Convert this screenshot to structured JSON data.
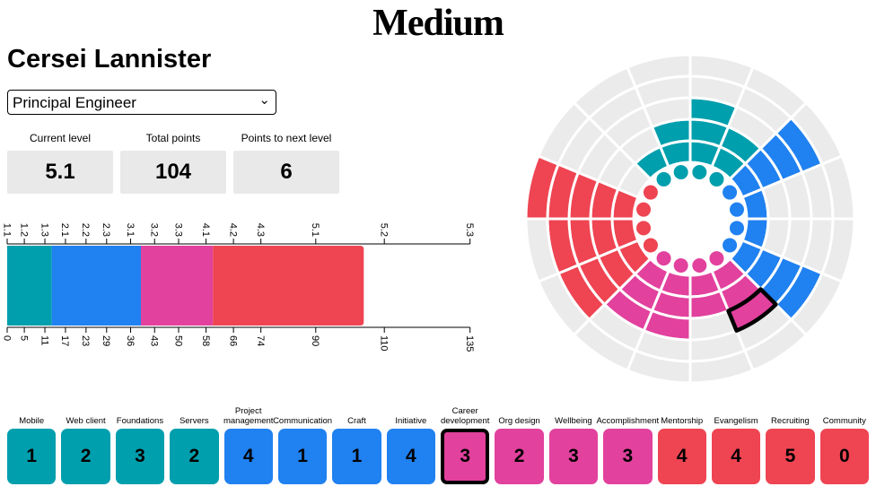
{
  "header": {
    "logo": "Medium"
  },
  "profile": {
    "name": "Cersei Lannister",
    "role_selector_value": "Principal Engineer"
  },
  "stats": {
    "items": [
      {
        "label": "Current level",
        "value": "5.1"
      },
      {
        "label": "Total points",
        "value": "104"
      },
      {
        "label": "Points to next level",
        "value": "6"
      }
    ]
  },
  "color_groups": {
    "teal": "#009FAD",
    "blue": "#2081F0",
    "pink": "#E2419D",
    "red": "#EF4452"
  },
  "milestone_points": {
    "0": 0,
    "1": 1,
    "2": 3,
    "3": 6,
    "4": 12,
    "5": 20
  },
  "level_chart": {
    "max_points": 135,
    "levels": [
      {
        "level": "1.1",
        "points": 0
      },
      {
        "level": "1.2",
        "points": 5
      },
      {
        "level": "1.3",
        "points": 11
      },
      {
        "level": "2.1",
        "points": 17
      },
      {
        "level": "2.2",
        "points": 23
      },
      {
        "level": "2.3",
        "points": 29
      },
      {
        "level": "3.1",
        "points": 36
      },
      {
        "level": "3.2",
        "points": 43
      },
      {
        "level": "3.3",
        "points": 50
      },
      {
        "level": "4.1",
        "points": 58
      },
      {
        "level": "4.2",
        "points": 66
      },
      {
        "level": "4.3",
        "points": 74
      },
      {
        "level": "5.1",
        "points": 90
      },
      {
        "level": "5.2",
        "points": 110
      },
      {
        "level": "5.3",
        "points": 135
      }
    ]
  },
  "track_chart": {
    "rings": 5,
    "empty_cell_color": "#EBEBEB"
  },
  "selection": {
    "category": "Career development",
    "milestone": 3
  },
  "categories": [
    {
      "name": "Mobile",
      "milestone": 1,
      "group": "teal"
    },
    {
      "name": "Web client",
      "milestone": 2,
      "group": "teal"
    },
    {
      "name": "Foundations",
      "milestone": 3,
      "group": "teal"
    },
    {
      "name": "Servers",
      "milestone": 2,
      "group": "teal"
    },
    {
      "name": "Project management",
      "milestone": 4,
      "group": "blue",
      "wrap": true
    },
    {
      "name": "Communication",
      "milestone": 1,
      "group": "blue"
    },
    {
      "name": "Craft",
      "milestone": 1,
      "group": "blue"
    },
    {
      "name": "Initiative",
      "milestone": 4,
      "group": "blue"
    },
    {
      "name": "Career development",
      "milestone": 3,
      "group": "pink",
      "wrap": true,
      "selected": true
    },
    {
      "name": "Org design",
      "milestone": 2,
      "group": "pink"
    },
    {
      "name": "Wellbeing",
      "milestone": 3,
      "group": "pink"
    },
    {
      "name": "Accomplishment",
      "milestone": 3,
      "group": "pink"
    },
    {
      "name": "Mentorship",
      "milestone": 4,
      "group": "red"
    },
    {
      "name": "Evangelism",
      "milestone": 4,
      "group": "red"
    },
    {
      "name": "Recruiting",
      "milestone": 5,
      "group": "red"
    },
    {
      "name": "Community",
      "milestone": 0,
      "group": "red"
    }
  ]
}
